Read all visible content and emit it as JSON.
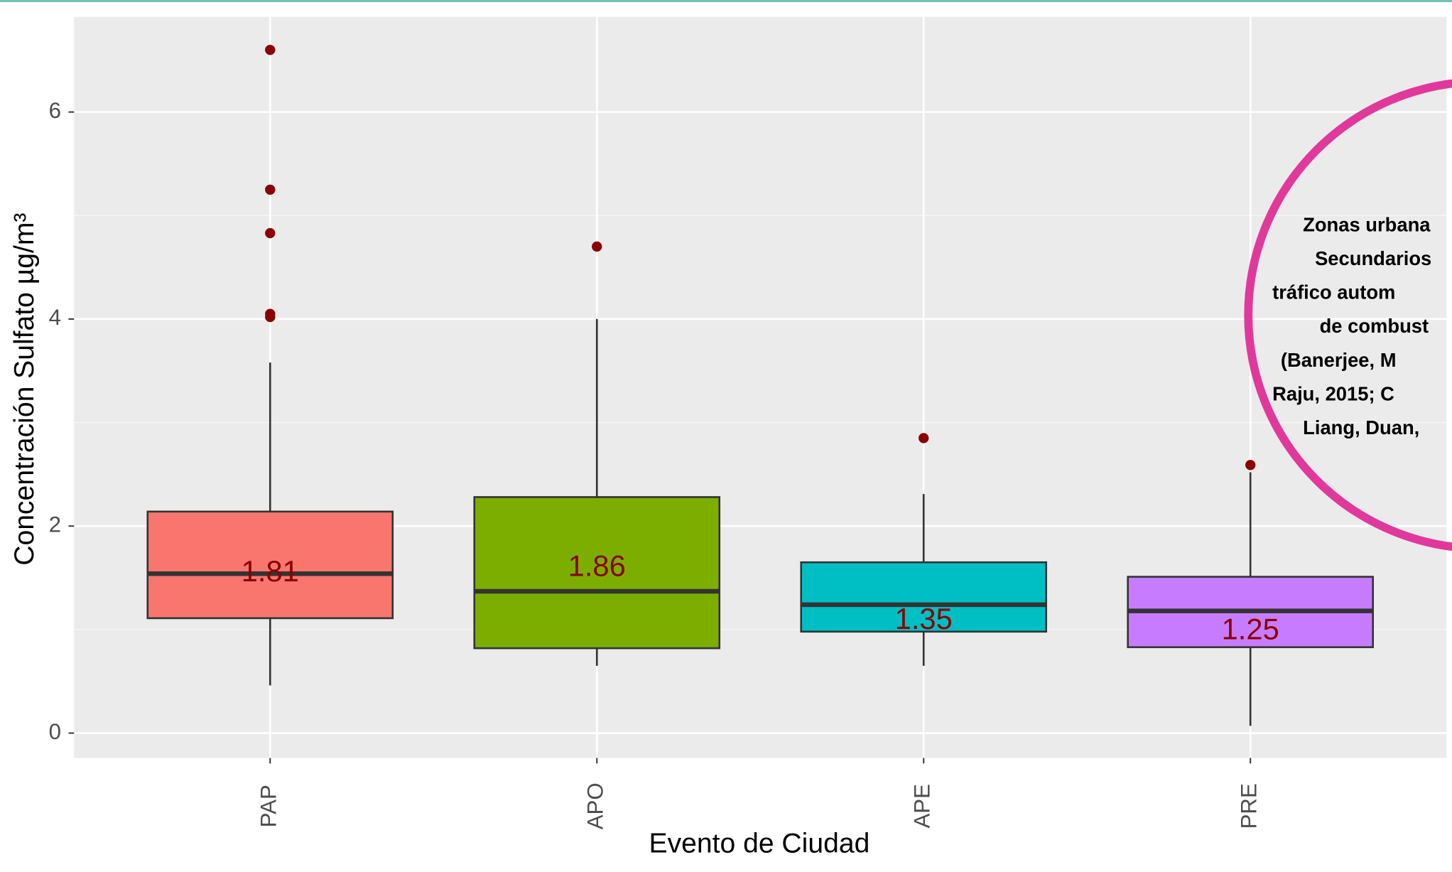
{
  "chart_data": {
    "type": "box",
    "x_label": "Evento de Ciudad",
    "y_label": "Concentración Sulfato µg/m³",
    "categories": [
      "PAP",
      "APO",
      "APE",
      "PRE"
    ],
    "colors": [
      "#F8766D",
      "#7CAE00",
      "#00BFC4",
      "#C77CFF"
    ],
    "whisker_low": [
      0.46,
      0.65,
      0.65,
      0.07
    ],
    "q1": [
      1.11,
      0.82,
      0.98,
      0.83
    ],
    "median": [
      1.54,
      1.37,
      1.24,
      1.18
    ],
    "q3": [
      2.14,
      2.28,
      1.65,
      1.51
    ],
    "whisker_high": [
      3.58,
      4.0,
      2.31,
      2.52
    ],
    "outliers": [
      [
        6.6,
        5.25,
        4.83,
        4.05,
        4.02
      ],
      [
        4.7
      ],
      [
        2.85
      ],
      [
        2.59
      ]
    ],
    "means": [
      1.81,
      1.86,
      1.35,
      1.25
    ],
    "ylim": [
      -0.24,
      6.92
    ],
    "yticks": [
      0,
      2,
      4,
      6
    ],
    "grid": true
  },
  "annotation": {
    "lines": [
      "Zonas urbana",
      "Secundarios",
      "tráfico autom",
      "de combust",
      "(Banerjee, M",
      "Raju, 2015; C",
      "Liang, Duan,"
    ]
  }
}
